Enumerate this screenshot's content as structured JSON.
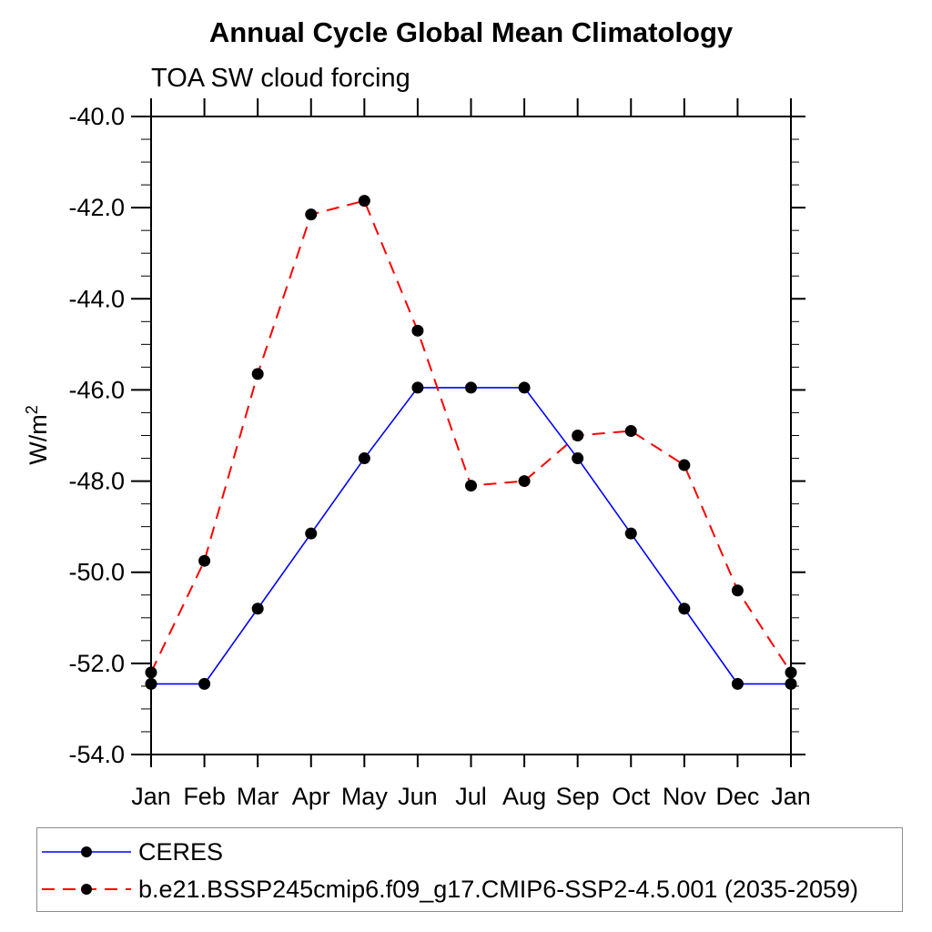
{
  "chart_data": {
    "type": "line",
    "title": "Annual Cycle Global Mean Climatology",
    "subtitle": "TOA SW cloud forcing",
    "ylabel": "W/m²",
    "xlabel": "",
    "categories": [
      "Jan",
      "Feb",
      "Mar",
      "Apr",
      "May",
      "Jun",
      "Jul",
      "Aug",
      "Sep",
      "Oct",
      "Nov",
      "Dec",
      "Jan"
    ],
    "ylim": [
      -40.0,
      -54.0
    ],
    "ytick_interval_major": 2.0,
    "ytick_interval_minor": 0.5,
    "grid": false,
    "legend_position": "bottom-left-box",
    "marker": {
      "shape": "circle",
      "color": "#000000"
    },
    "series": [
      {
        "name": "CERES",
        "color": "#0000ff",
        "line_style": "solid",
        "values": [
          -52.45,
          -52.45,
          -50.8,
          -49.15,
          -47.5,
          -45.95,
          -45.95,
          -45.95,
          -47.5,
          -49.15,
          -50.8,
          -52.45,
          -52.45
        ]
      },
      {
        "name": "b.e21.BSSP245cmip6.f09_g17.CMIP6-SSP2-4.5.001 (2035-2059)",
        "color": "#ff0000",
        "line_style": "dashed",
        "values": [
          -52.2,
          -49.75,
          -45.65,
          -42.15,
          -41.85,
          -44.7,
          -48.1,
          -48.0,
          -47.0,
          -46.9,
          -47.65,
          -50.4,
          -52.2
        ]
      }
    ]
  },
  "y_axis_title": {
    "base": "W/m",
    "sup": "2"
  }
}
